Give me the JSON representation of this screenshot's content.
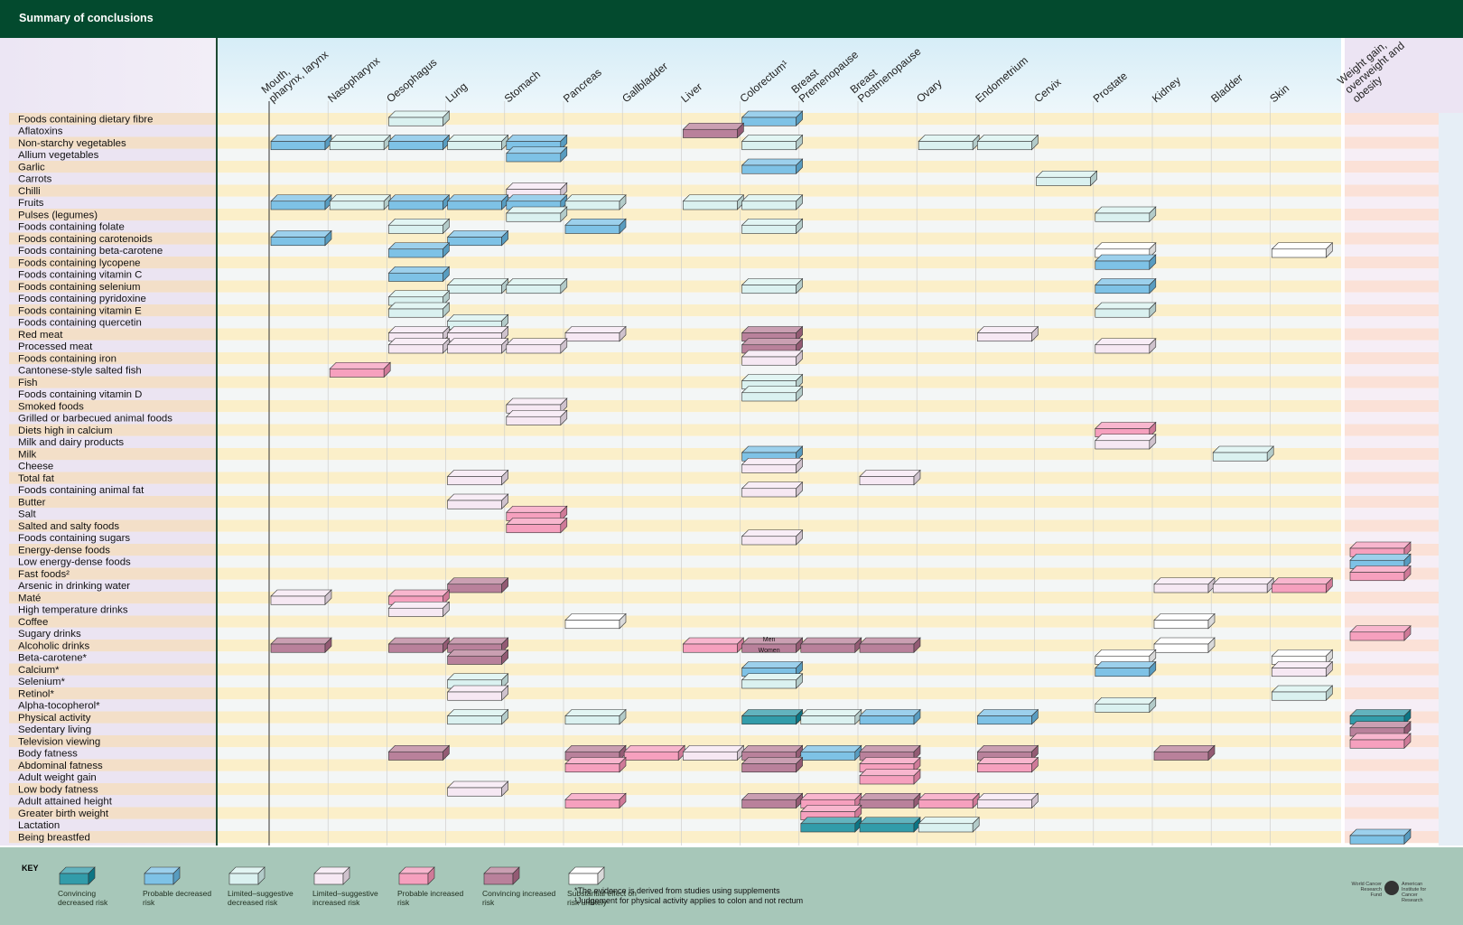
{
  "title": "Summary of conclusions",
  "colors": {
    "conv_dec": "#0e8a9b",
    "prob_dec": "#67b7e2",
    "lim_dec": "#d3efed",
    "lim_inc": "#f4e4f1",
    "prob_inc": "#f48fb3",
    "conv_inc": "#ad6b89",
    "none": "#ffffff"
  },
  "chart_data": {
    "type": "table",
    "columns": [
      "Mouth, pharynx, larynx",
      "Nasopharynx",
      "Oesophagus",
      "Lung",
      "Stomach",
      "Pancreas",
      "Gallbladder",
      "Liver",
      "Colorectum¹",
      "Breast Premenopause",
      "Breast Postmenopause",
      "Ovary",
      "Endometrium",
      "Cervix",
      "Prostate",
      "Kidney",
      "Bladder",
      "Skin",
      "Weight gain, overweight and obesity"
    ],
    "column_lines": [
      [
        "Mouth,",
        "pharynx, larynx"
      ],
      [
        "Nasopharynx"
      ],
      [
        "Oesophagus"
      ],
      [
        "Lung"
      ],
      [
        "Stomach"
      ],
      [
        "Pancreas"
      ],
      [
        "Gallbladder"
      ],
      [
        "Liver"
      ],
      [
        "Colorectum¹"
      ],
      [
        "Breast",
        "Premenopause"
      ],
      [
        "Breast",
        "Postmenopause"
      ],
      [
        "Ovary"
      ],
      [
        "Endometrium"
      ],
      [
        "Cervix"
      ],
      [
        "Prostate"
      ],
      [
        "Kidney"
      ],
      [
        "Bladder"
      ],
      [
        "Skin"
      ],
      [
        "Weight gain,",
        "overweight and",
        "obesity"
      ]
    ],
    "rows": [
      "Foods containing dietary fibre",
      "Aflatoxins",
      "Non-starchy vegetables",
      "Allium vegetables",
      "Garlic",
      "Carrots",
      "Chilli",
      "Fruits",
      "Pulses (legumes)",
      "Foods containing folate",
      "Foods containing carotenoids",
      "Foods containing beta-carotene",
      "Foods containing lycopene",
      "Foods containing vitamin C",
      "Foods containing selenium",
      "Foods containing pyridoxine",
      "Foods containing vitamin E",
      "Foods containing quercetin",
      "Red meat",
      "Processed meat",
      "Foods containing iron",
      "Cantonese-style salted fish",
      "Fish",
      "Foods containing vitamin D",
      "Smoked foods",
      "Grilled or barbecued animal foods",
      "Diets high in calcium",
      "Milk and dairy products",
      "Milk",
      "Cheese",
      "Total fat",
      "Foods containing animal fat",
      "Butter",
      "Salt",
      "Salted and salty foods",
      "Foods containing sugars",
      "Energy-dense foods",
      "Low energy-dense foods",
      "Fast foods²",
      "Arsenic in drinking water",
      "Maté",
      "High temperature drinks",
      "Coffee",
      "Sugary drinks",
      "Alcoholic drinks",
      "Beta-carotene*",
      "Calcium*",
      "Selenium*",
      "Retinol*",
      "Alpha-tocopherol*",
      "Physical activity",
      "Sedentary living",
      "Television viewing",
      "Body fatness",
      "Abdominal fatness",
      "Adult weight gain",
      "Low body fatness",
      "Adult attained height",
      "Greater birth weight",
      "Lactation",
      "Being breastfed"
    ],
    "cells": [
      [
        0,
        2,
        "ld"
      ],
      [
        0,
        8,
        "pd"
      ],
      [
        1,
        7,
        "ci"
      ],
      [
        2,
        0,
        "pd"
      ],
      [
        2,
        1,
        "ld"
      ],
      [
        2,
        2,
        "pd"
      ],
      [
        2,
        3,
        "ld"
      ],
      [
        2,
        4,
        "pd"
      ],
      [
        2,
        8,
        "ld"
      ],
      [
        2,
        11,
        "ld"
      ],
      [
        2,
        12,
        "ld"
      ],
      [
        3,
        4,
        "pd"
      ],
      [
        4,
        8,
        "pd"
      ],
      [
        5,
        13,
        "ld"
      ],
      [
        6,
        4,
        "li"
      ],
      [
        7,
        0,
        "pd"
      ],
      [
        7,
        1,
        "ld"
      ],
      [
        7,
        2,
        "pd"
      ],
      [
        7,
        3,
        "pd"
      ],
      [
        7,
        4,
        "pd"
      ],
      [
        7,
        5,
        "ld"
      ],
      [
        7,
        7,
        "ld"
      ],
      [
        7,
        8,
        "ld"
      ],
      [
        8,
        4,
        "ld"
      ],
      [
        8,
        14,
        "ld"
      ],
      [
        9,
        2,
        "ld"
      ],
      [
        9,
        5,
        "pd"
      ],
      [
        9,
        8,
        "ld"
      ],
      [
        10,
        0,
        "pd"
      ],
      [
        10,
        3,
        "pd"
      ],
      [
        11,
        2,
        "pd"
      ],
      [
        11,
        14,
        "no"
      ],
      [
        11,
        17,
        "no"
      ],
      [
        12,
        14,
        "pd"
      ],
      [
        13,
        2,
        "pd"
      ],
      [
        14,
        3,
        "ld"
      ],
      [
        14,
        4,
        "ld"
      ],
      [
        14,
        8,
        "ld"
      ],
      [
        14,
        14,
        "pd"
      ],
      [
        15,
        2,
        "ld"
      ],
      [
        16,
        2,
        "ld"
      ],
      [
        16,
        14,
        "ld"
      ],
      [
        17,
        3,
        "ld"
      ],
      [
        18,
        2,
        "li"
      ],
      [
        18,
        3,
        "li"
      ],
      [
        18,
        5,
        "li"
      ],
      [
        18,
        8,
        "ci"
      ],
      [
        18,
        12,
        "li"
      ],
      [
        19,
        2,
        "li"
      ],
      [
        19,
        3,
        "li"
      ],
      [
        19,
        4,
        "li"
      ],
      [
        19,
        8,
        "ci"
      ],
      [
        19,
        14,
        "li"
      ],
      [
        20,
        8,
        "li"
      ],
      [
        21,
        1,
        "pi"
      ],
      [
        22,
        8,
        "ld"
      ],
      [
        23,
        8,
        "ld"
      ],
      [
        24,
        4,
        "li"
      ],
      [
        25,
        4,
        "li"
      ],
      [
        26,
        14,
        "pi"
      ],
      [
        27,
        14,
        "li"
      ],
      [
        28,
        8,
        "pd"
      ],
      [
        28,
        16,
        "ld"
      ],
      [
        29,
        8,
        "li"
      ],
      [
        30,
        3,
        "li"
      ],
      [
        30,
        10,
        "li"
      ],
      [
        31,
        8,
        "li"
      ],
      [
        32,
        3,
        "li"
      ],
      [
        33,
        4,
        "pi"
      ],
      [
        34,
        4,
        "pi"
      ],
      [
        35,
        8,
        "li"
      ],
      [
        36,
        18,
        "pi"
      ],
      [
        37,
        18,
        "pd"
      ],
      [
        38,
        18,
        "pi"
      ],
      [
        39,
        3,
        "ci"
      ],
      [
        39,
        15,
        "li"
      ],
      [
        39,
        16,
        "li"
      ],
      [
        39,
        17,
        "pi"
      ],
      [
        40,
        0,
        "li"
      ],
      [
        40,
        2,
        "pi"
      ],
      [
        41,
        2,
        "li"
      ],
      [
        42,
        5,
        "no"
      ],
      [
        42,
        15,
        "no"
      ],
      [
        43,
        18,
        "pi"
      ],
      [
        44,
        0,
        "ci"
      ],
      [
        44,
        2,
        "ci"
      ],
      [
        44,
        3,
        "ci"
      ],
      [
        44,
        7,
        "pi"
      ],
      [
        44,
        8,
        "ci"
      ],
      [
        44,
        9,
        "ci"
      ],
      [
        44,
        10,
        "ci"
      ],
      [
        44,
        15,
        "no"
      ],
      [
        45,
        3,
        "ci"
      ],
      [
        45,
        14,
        "no"
      ],
      [
        45,
        17,
        "no"
      ],
      [
        46,
        8,
        "pd"
      ],
      [
        46,
        14,
        "pd"
      ],
      [
        46,
        17,
        "li"
      ],
      [
        47,
        3,
        "ld"
      ],
      [
        47,
        8,
        "ld"
      ],
      [
        48,
        3,
        "li"
      ],
      [
        48,
        17,
        "ld"
      ],
      [
        49,
        14,
        "ld"
      ],
      [
        50,
        3,
        "ld"
      ],
      [
        50,
        5,
        "ld"
      ],
      [
        50,
        8,
        "cd"
      ],
      [
        50,
        9,
        "ld"
      ],
      [
        50,
        10,
        "pd"
      ],
      [
        50,
        12,
        "pd"
      ],
      [
        50,
        18,
        "cd"
      ],
      [
        51,
        18,
        "ci"
      ],
      [
        52,
        18,
        "pi"
      ],
      [
        53,
        2,
        "ci"
      ],
      [
        53,
        5,
        "ci"
      ],
      [
        53,
        6,
        "pi"
      ],
      [
        53,
        7,
        "li"
      ],
      [
        53,
        8,
        "ci"
      ],
      [
        53,
        9,
        "pd"
      ],
      [
        53,
        10,
        "ci"
      ],
      [
        53,
        12,
        "ci"
      ],
      [
        53,
        15,
        "ci"
      ],
      [
        54,
        5,
        "pi"
      ],
      [
        54,
        8,
        "ci"
      ],
      [
        54,
        10,
        "pi"
      ],
      [
        54,
        12,
        "pi"
      ],
      [
        55,
        10,
        "pi"
      ],
      [
        56,
        3,
        "li"
      ],
      [
        57,
        5,
        "pi"
      ],
      [
        57,
        8,
        "ci"
      ],
      [
        57,
        9,
        "pi"
      ],
      [
        57,
        10,
        "ci"
      ],
      [
        57,
        11,
        "pi"
      ],
      [
        57,
        12,
        "li"
      ],
      [
        58,
        9,
        "pi"
      ],
      [
        59,
        9,
        "cd"
      ],
      [
        59,
        10,
        "cd"
      ],
      [
        59,
        11,
        "ld"
      ],
      [
        60,
        18,
        "pd"
      ]
    ],
    "annotations": [
      {
        "row": 44,
        "col": 8,
        "text": "Men"
      },
      {
        "row": 44,
        "col": 8,
        "text": "Women"
      }
    ]
  },
  "key": {
    "title": "KEY",
    "items": [
      {
        "code": "cd",
        "label": "Convincing decreased risk"
      },
      {
        "code": "pd",
        "label": "Probable decreased risk"
      },
      {
        "code": "ld",
        "label": "Limited–suggestive decreased risk"
      },
      {
        "code": "li",
        "label": "Limited–suggestive increased risk"
      },
      {
        "code": "pi",
        "label": "Probable increased risk"
      },
      {
        "code": "ci",
        "label": "Convincing increased risk"
      },
      {
        "code": "no",
        "label": "Substantial effect on risk unlikely"
      }
    ],
    "note1": "*The evidence is derived from studies using supplements",
    "note2": "¹Judgement for physical activity applies to colon and not rectum",
    "logo_left": "World Cancer Research Fund",
    "logo_right": "American Institute for Cancer Research"
  }
}
